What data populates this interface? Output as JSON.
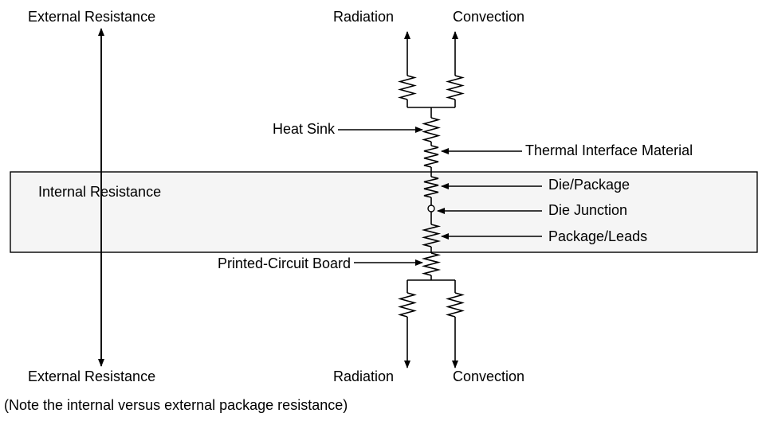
{
  "top": {
    "external": "External Resistance",
    "radiation": "Radiation",
    "convection": "Convection"
  },
  "labels": {
    "heat_sink": "Heat Sink",
    "thermal_interface": "Thermal Interface Material",
    "internal": "Internal Resistance",
    "die_package": "Die/Package",
    "die_junction": "Die Junction",
    "package_leads": "Package/Leads",
    "pcb": "Printed-Circuit Board"
  },
  "bottom": {
    "external": "External Resistance",
    "radiation": "Radiation",
    "convection": "Convection"
  },
  "note": "(Note the internal versus external package resistance)"
}
